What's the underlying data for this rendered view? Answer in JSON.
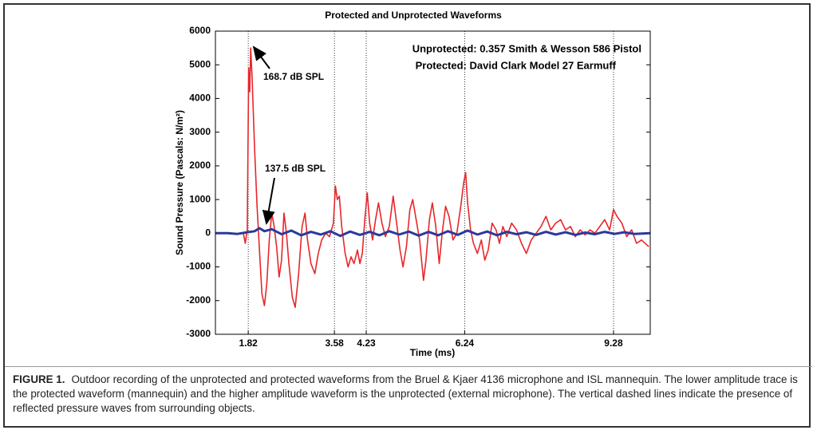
{
  "chart_data": {
    "type": "line",
    "title": "Protected and Unprotected Waveforms",
    "x_label": "Time (ms)",
    "y_label": "Sound Pressure (Pascals: N/m²)",
    "annotations": [
      "Unprotected: 0.357 Smith & Wesson 586 Pistol",
      "Protected: David Clark Model 27 Earmuff",
      "168.7 dB SPL",
      "137.5 dB SPL"
    ],
    "xlim": [
      1.15,
      10.03
    ],
    "xticks": [
      1.82,
      3.58,
      4.23,
      6.24,
      9.28
    ],
    "ylim": [
      -3000,
      6000
    ],
    "yticks": [
      -3000,
      -2000,
      -1000,
      0,
      1000,
      2000,
      3000,
      4000,
      5000,
      6000
    ],
    "grid": "x",
    "series": [
      {
        "name": "Unprotected",
        "color": "#e8262a",
        "x": [
          1.72,
          1.76,
          1.8,
          1.83,
          1.85,
          1.87,
          1.9,
          1.95,
          2.0,
          2.05,
          2.1,
          2.15,
          2.2,
          2.25,
          2.3,
          2.35,
          2.4,
          2.45,
          2.5,
          2.55,
          2.6,
          2.65,
          2.72,
          2.78,
          2.85,
          2.92,
          2.98,
          3.03,
          3.1,
          3.18,
          3.25,
          3.32,
          3.4,
          3.48,
          3.56,
          3.6,
          3.64,
          3.68,
          3.73,
          3.8,
          3.86,
          3.92,
          3.98,
          4.05,
          4.1,
          4.15,
          4.2,
          4.25,
          4.3,
          4.36,
          4.42,
          4.48,
          4.55,
          4.62,
          4.7,
          4.78,
          4.85,
          4.92,
          4.98,
          5.05,
          5.12,
          5.18,
          5.25,
          5.32,
          5.4,
          5.45,
          5.52,
          5.58,
          5.65,
          5.72,
          5.78,
          5.85,
          5.92,
          6.0,
          6.08,
          6.16,
          6.22,
          6.26,
          6.3,
          6.36,
          6.42,
          6.5,
          6.58,
          6.65,
          6.72,
          6.8,
          6.88,
          6.95,
          7.02,
          7.1,
          7.2,
          7.3,
          7.4,
          7.5,
          7.6,
          7.7,
          7.8,
          7.9,
          8.0,
          8.1,
          8.2,
          8.3,
          8.4,
          8.5,
          8.6,
          8.7,
          8.8,
          8.9,
          9.0,
          9.1,
          9.2,
          9.28,
          9.35,
          9.45,
          9.55,
          9.65,
          9.75,
          9.85,
          10.0
        ],
        "values": [
          0,
          -300,
          100,
          4900,
          4200,
          5500,
          4600,
          2500,
          800,
          -500,
          -1800,
          -2150,
          -1500,
          -200,
          600,
          200,
          -400,
          -1300,
          -800,
          600,
          0,
          -900,
          -1900,
          -2200,
          -1200,
          200,
          600,
          -200,
          -900,
          -1200,
          -600,
          -200,
          0,
          -100,
          300,
          1400,
          1000,
          1100,
          200,
          -600,
          -1000,
          -700,
          -900,
          -500,
          -900,
          -600,
          400,
          1200,
          300,
          -200,
          400,
          900,
          300,
          -100,
          200,
          1100,
          300,
          -500,
          -1000,
          -400,
          700,
          1000,
          400,
          -200,
          -1400,
          -800,
          400,
          900,
          200,
          -900,
          0,
          800,
          500,
          -200,
          0,
          800,
          1500,
          1800,
          900,
          100,
          -300,
          -600,
          -200,
          -800,
          -500,
          300,
          100,
          -300,
          200,
          -100,
          300,
          100,
          -300,
          -600,
          -200,
          0,
          200,
          500,
          100,
          300,
          400,
          100,
          200,
          -100,
          100,
          -50,
          100,
          0,
          200,
          400,
          100,
          700,
          500,
          300,
          -100,
          100,
          -300,
          -200,
          -400
        ]
      },
      {
        "name": "Protected",
        "color": "#2b3a9c",
        "x": [
          1.15,
          1.4,
          1.6,
          1.8,
          1.95,
          2.05,
          2.15,
          2.3,
          2.5,
          2.7,
          2.9,
          3.1,
          3.3,
          3.5,
          3.7,
          3.9,
          4.1,
          4.3,
          4.5,
          4.7,
          4.9,
          5.1,
          5.3,
          5.5,
          5.7,
          5.9,
          6.1,
          6.3,
          6.5,
          6.7,
          6.9,
          7.1,
          7.3,
          7.5,
          7.7,
          7.9,
          8.1,
          8.3,
          8.5,
          8.7,
          8.9,
          9.1,
          9.3,
          9.5,
          9.7,
          10.03
        ],
        "values": [
          0,
          0,
          -20,
          30,
          60,
          150,
          60,
          120,
          -30,
          80,
          -60,
          40,
          -40,
          60,
          -80,
          50,
          -50,
          40,
          -60,
          60,
          -40,
          50,
          -70,
          40,
          -60,
          60,
          -50,
          80,
          -40,
          50,
          -60,
          40,
          -30,
          30,
          -50,
          40,
          -40,
          30,
          -50,
          20,
          -30,
          40,
          -20,
          30,
          -20,
          0
        ]
      }
    ]
  },
  "caption": {
    "label": "FIGURE 1.",
    "text": "Outdoor recording of the unprotected and protected waveforms from the Bruel & Kjaer 4136 microphone and ISL mannequin. The lower amplitude trace is the protected waveform (mannequin) and the higher amplitude waveform is the unprotected (external microphone). The vertical dashed lines indicate the presence of reflected pressure waves from surrounding objects."
  }
}
